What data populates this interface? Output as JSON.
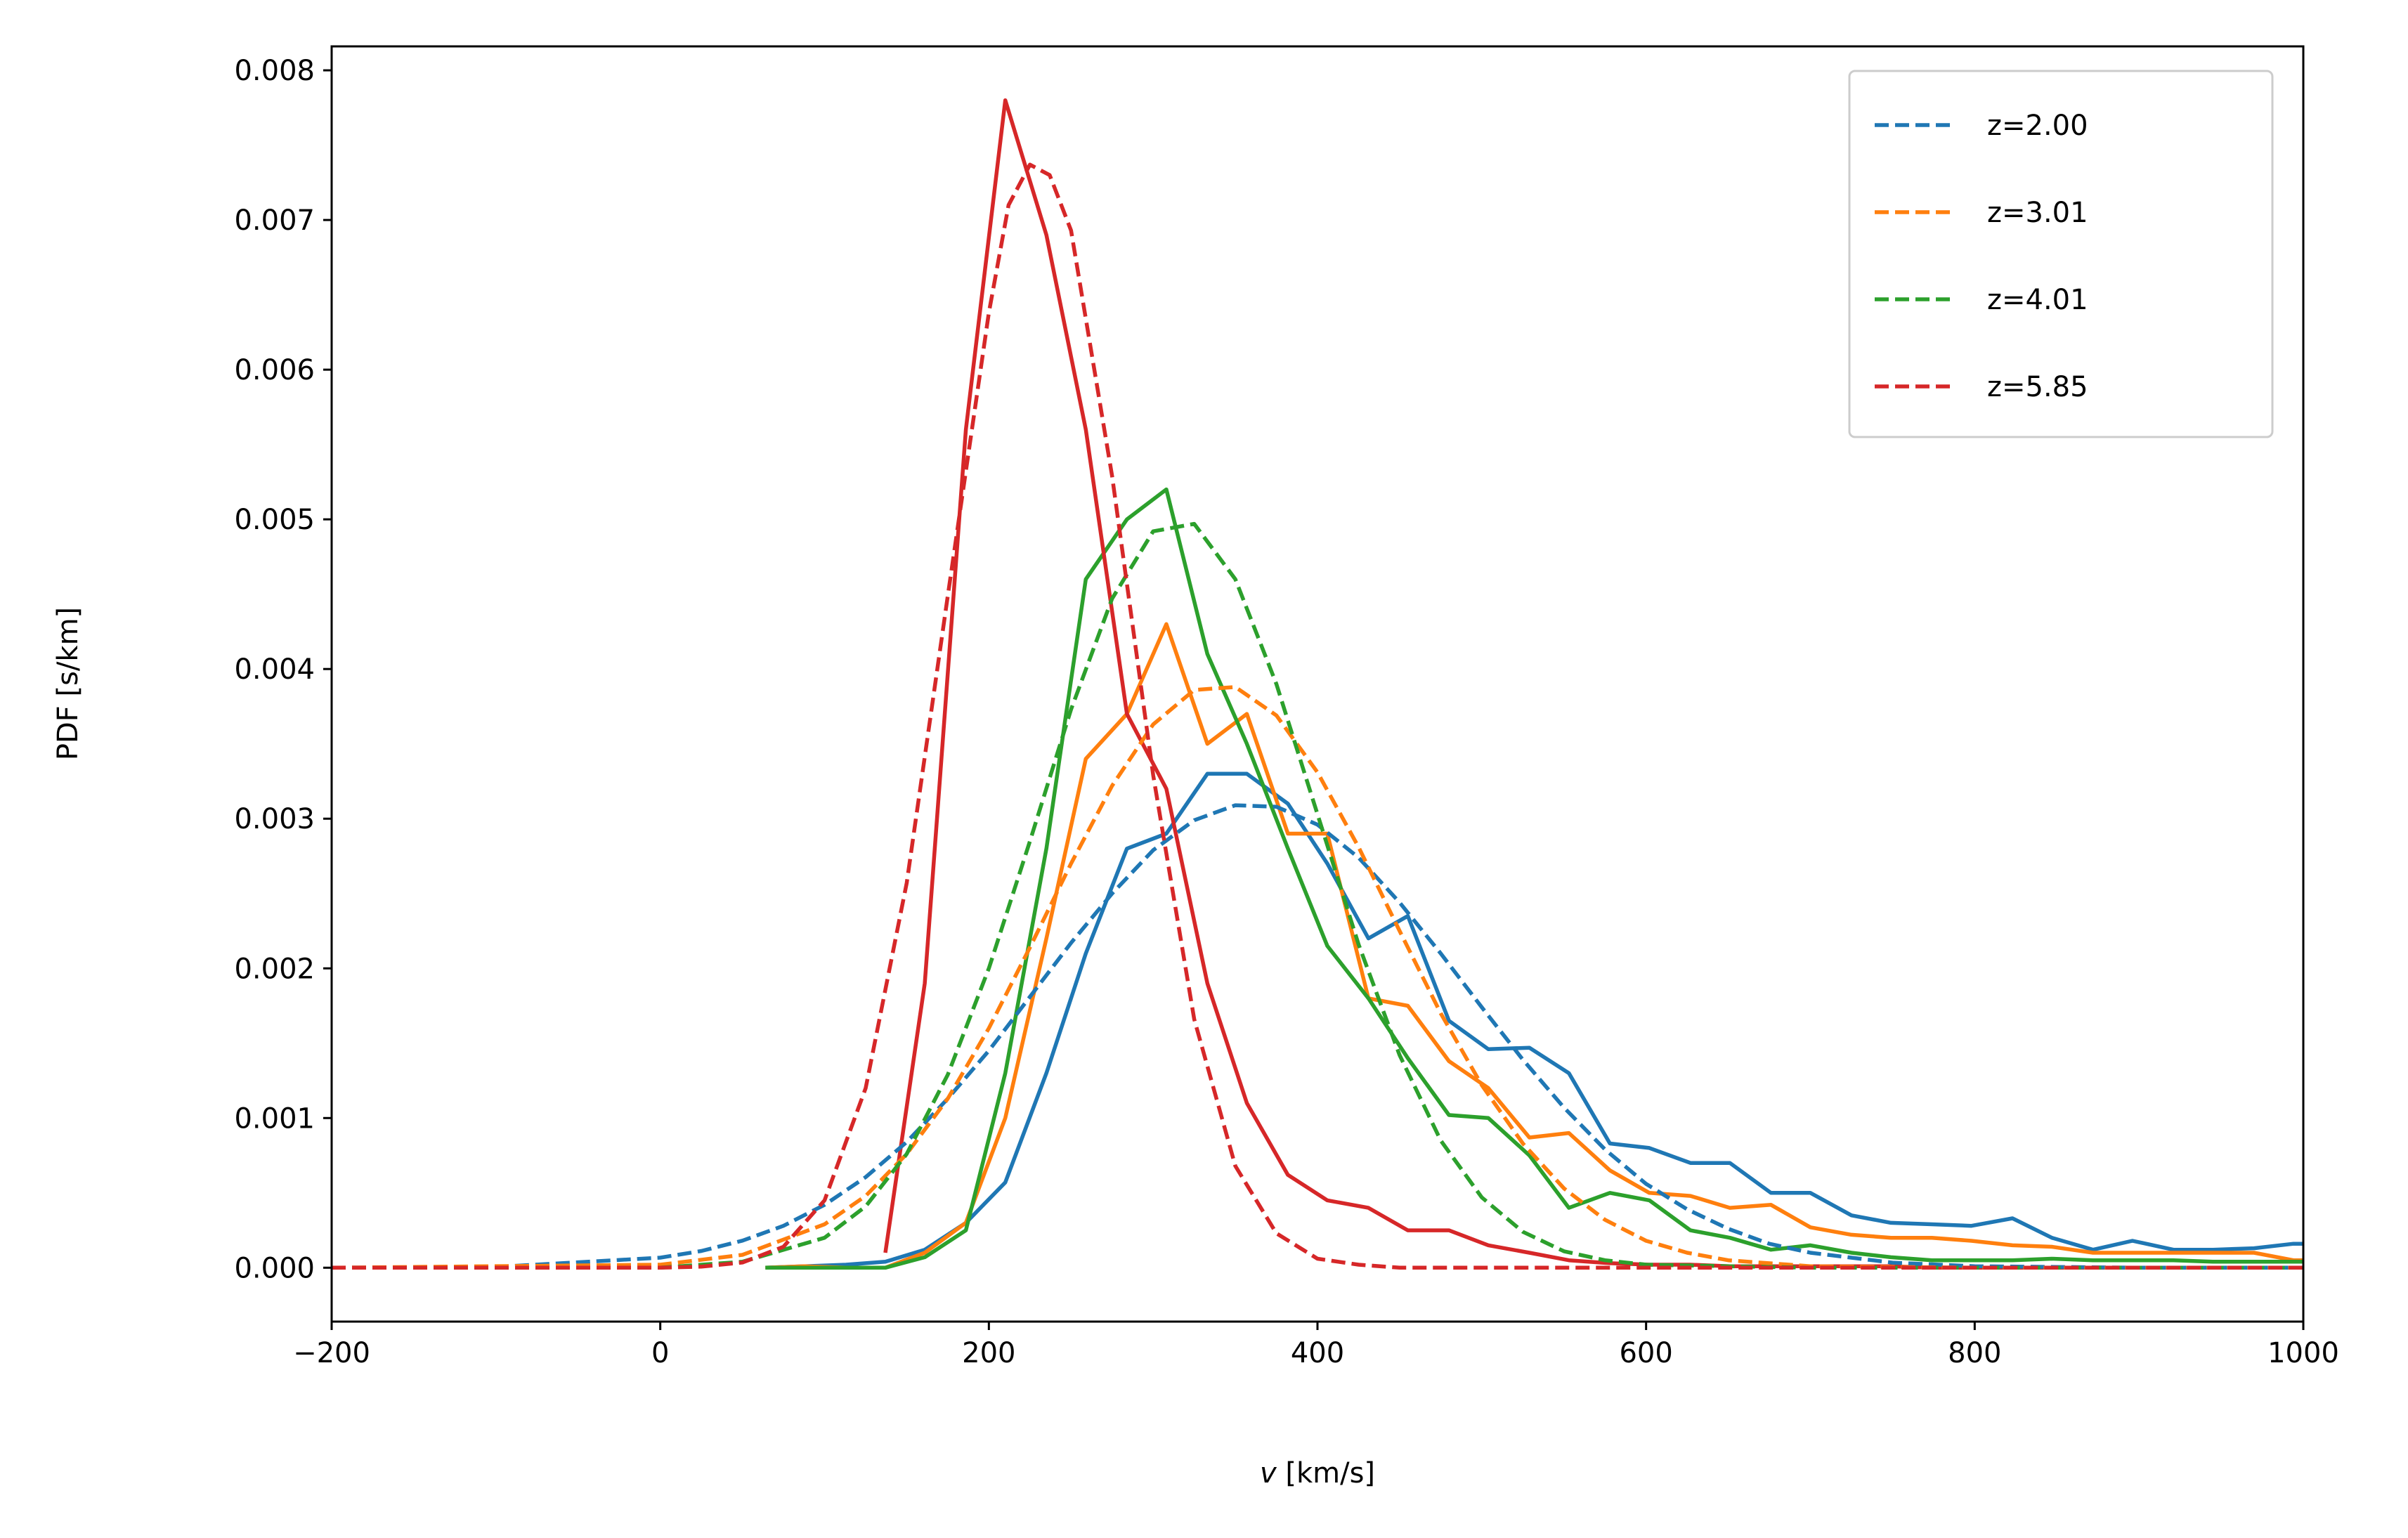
{
  "chart_data": {
    "type": "line",
    "title": "",
    "xlabel_var": "v",
    "xlabel_unit": " [km/s]",
    "ylabel": "PDF [s/km]",
    "xlim": [
      -200,
      1000
    ],
    "ylim": [
      -0.00036,
      0.00816
    ],
    "xticks": [
      -200,
      0,
      200,
      400,
      600,
      800,
      1000
    ],
    "xtick_labels": [
      "−200",
      "0",
      "200",
      "400",
      "600",
      "800",
      "1000"
    ],
    "yticks": [
      0,
      0.001,
      0.002,
      0.003,
      0.004,
      0.005,
      0.006,
      0.007,
      0.008
    ],
    "ytick_labels": [
      "0.000",
      "0.001",
      "0.002",
      "0.003",
      "0.004",
      "0.005",
      "0.006",
      "0.007",
      "0.008"
    ],
    "grid": false,
    "legend_position": "top-right",
    "legend": [
      {
        "label": "z=2.00",
        "color": "#1f77b4"
      },
      {
        "label": "z=3.01",
        "color": "#ff7f0e"
      },
      {
        "label": "z=4.01",
        "color": "#2ca02c"
      },
      {
        "label": "z=5.85",
        "color": "#d62728"
      }
    ],
    "series": [
      {
        "name": "z=2.00",
        "style": "solid",
        "color": "#1f77b4",
        "x": [
          64,
          88,
          113,
          137,
          161,
          186,
          210,
          235,
          259,
          284,
          308,
          333,
          357,
          382,
          406,
          431,
          455,
          480,
          504,
          529,
          553,
          578,
          602,
          627,
          651,
          676,
          700,
          725,
          749,
          774,
          798,
          823,
          847,
          872,
          896,
          921,
          945,
          970,
          994,
          1000
        ],
        "y": [
          0,
          1e-05,
          2e-05,
          4e-05,
          0.00012,
          0.0003,
          0.00057,
          0.0013,
          0.0021,
          0.0028,
          0.0029,
          0.0033,
          0.0033,
          0.0031,
          0.0027,
          0.0022,
          0.00235,
          0.00165,
          0.00146,
          0.00147,
          0.0013,
          0.00083,
          0.0008,
          0.0007,
          0.0007,
          0.0005,
          0.0005,
          0.00035,
          0.0003,
          0.00029,
          0.00028,
          0.00033,
          0.0002,
          0.00012,
          0.00018,
          0.00012,
          0.00012,
          0.00013,
          0.00016,
          0.00016
        ]
      },
      {
        "name": "z=3.01",
        "style": "solid",
        "color": "#ff7f0e",
        "x": [
          64,
          88,
          113,
          137,
          161,
          186,
          210,
          235,
          259,
          284,
          308,
          333,
          357,
          382,
          406,
          431,
          455,
          480,
          504,
          529,
          553,
          578,
          602,
          627,
          651,
          676,
          700,
          725,
          749,
          774,
          798,
          823,
          847,
          872,
          896,
          921,
          945,
          970,
          994,
          1000
        ],
        "y": [
          0,
          1e-05,
          0,
          0,
          0.0001,
          0.0003,
          0.001,
          0.0022,
          0.0034,
          0.0037,
          0.0043,
          0.0035,
          0.0037,
          0.0029,
          0.0029,
          0.0018,
          0.00175,
          0.00138,
          0.0012,
          0.00087,
          0.0009,
          0.00065,
          0.0005,
          0.00048,
          0.0004,
          0.00042,
          0.00027,
          0.00022,
          0.0002,
          0.0002,
          0.00018,
          0.00015,
          0.00014,
          0.0001,
          0.0001,
          0.0001,
          0.0001,
          0.0001,
          5e-05,
          5e-05
        ]
      },
      {
        "name": "z=4.01",
        "style": "solid",
        "color": "#2ca02c",
        "x": [
          64,
          88,
          113,
          137,
          161,
          186,
          210,
          235,
          259,
          284,
          308,
          333,
          357,
          382,
          406,
          431,
          455,
          480,
          504,
          529,
          553,
          578,
          602,
          627,
          651,
          676,
          700,
          725,
          749,
          774,
          798,
          823,
          847,
          872,
          896,
          921,
          945,
          970,
          994,
          1000
        ],
        "y": [
          0,
          0,
          0,
          0,
          7e-05,
          0.00025,
          0.0013,
          0.0028,
          0.0046,
          0.005,
          0.0052,
          0.0041,
          0.0035,
          0.0028,
          0.00215,
          0.0018,
          0.0014,
          0.00102,
          0.001,
          0.00075,
          0.0004,
          0.0005,
          0.00045,
          0.00025,
          0.0002,
          0.00012,
          0.00015,
          0.0001,
          7e-05,
          5e-05,
          5e-05,
          5e-05,
          6e-05,
          5e-05,
          5e-05,
          5e-05,
          4e-05,
          4e-05,
          4e-05,
          4e-05
        ]
      },
      {
        "name": "z=5.85",
        "style": "solid",
        "color": "#d62728",
        "x": [
          137,
          161,
          186,
          210,
          235,
          259,
          284,
          308,
          333,
          357,
          382,
          406,
          431,
          455,
          480,
          504,
          529,
          553,
          578,
          602,
          627,
          651,
          676,
          700,
          725,
          749,
          774,
          798,
          823,
          847,
          872,
          896,
          921,
          945,
          970,
          994,
          1000
        ],
        "y": [
          0.0001,
          0.0019,
          0.0056,
          0.0078,
          0.0069,
          0.0056,
          0.0037,
          0.0032,
          0.0019,
          0.0011,
          0.00062,
          0.00045,
          0.0004,
          0.00025,
          0.00025,
          0.00015,
          0.0001,
          5e-05,
          3e-05,
          2e-05,
          2e-05,
          1e-05,
          1e-05,
          1e-05,
          1e-05,
          1e-05,
          0,
          0,
          0,
          0,
          0,
          0,
          0,
          0,
          0,
          0,
          0
        ]
      },
      {
        "name": "z=2.00",
        "style": "dashed",
        "color": "#1f77b4",
        "x": [
          -200,
          -100,
          0,
          25,
          50,
          75,
          100,
          125,
          150,
          175,
          200,
          225,
          250,
          275,
          300,
          325,
          350,
          375,
          400,
          425,
          450,
          475,
          500,
          525,
          550,
          575,
          600,
          625,
          650,
          675,
          700,
          750,
          800,
          900,
          1000
        ],
        "y": [
          0,
          5e-06,
          6.7e-05,
          0.000112,
          0.000181,
          0.00028,
          0.00042,
          0.000605,
          0.00084,
          0.00113,
          0.00145,
          0.00181,
          0.00217,
          0.0025,
          0.00279,
          0.00299,
          0.00309,
          0.00308,
          0.00296,
          0.00274,
          0.00244,
          0.0021,
          0.00174,
          0.00139,
          0.00107,
          0.00079,
          0.00056,
          0.00039,
          0.00026,
          0.00016,
          0.0001,
          3.4e-05,
          1e-05,
          0,
          0
        ]
      },
      {
        "name": "z=3.01",
        "style": "dashed",
        "color": "#ff7f0e",
        "x": [
          -200,
          0,
          50,
          100,
          125,
          150,
          175,
          200,
          225,
          250,
          275,
          300,
          325,
          350,
          375,
          400,
          425,
          450,
          475,
          500,
          525,
          550,
          575,
          600,
          625,
          650,
          700,
          800,
          1000
        ],
        "y": [
          0,
          2e-05,
          8.6e-05,
          0.00029,
          0.00048,
          0.00076,
          0.00113,
          0.0016,
          0.00214,
          0.0027,
          0.00322,
          0.00363,
          0.00386,
          0.00388,
          0.00369,
          0.00331,
          0.00281,
          0.00225,
          0.0017,
          0.00122,
          0.00083,
          0.00053,
          0.00032,
          0.00018,
          0.0001,
          5e-05,
          1e-05,
          0,
          0
        ]
      },
      {
        "name": "z=4.01",
        "style": "dashed",
        "color": "#2ca02c",
        "x": [
          -200,
          0,
          50,
          100,
          125,
          150,
          175,
          200,
          225,
          250,
          275,
          300,
          325,
          350,
          375,
          400,
          425,
          450,
          475,
          500,
          525,
          550,
          575,
          600,
          700,
          1000
        ],
        "y": [
          0,
          0,
          4e-05,
          0.0002,
          0.00041,
          0.00076,
          0.00129,
          0.002,
          0.00285,
          0.00373,
          0.00447,
          0.00492,
          0.00497,
          0.0046,
          0.0039,
          0.00303,
          0.00216,
          0.00142,
          0.00085,
          0.00047,
          0.00024,
          0.00011,
          5e-05,
          2e-05,
          0,
          0
        ]
      },
      {
        "name": "z=5.85",
        "style": "dashed",
        "color": "#d62728",
        "x": [
          -200,
          0,
          25,
          50,
          75,
          100,
          125,
          150,
          175,
          200,
          212,
          225,
          237,
          250,
          275,
          300,
          325,
          350,
          375,
          400,
          425,
          450,
          600,
          800,
          1000
        ],
        "y": [
          0,
          0,
          7e-06,
          3.5e-05,
          0.00014,
          0.00045,
          0.0012,
          0.00257,
          0.00449,
          0.00638,
          0.0071,
          0.00737,
          0.0073,
          0.00693,
          0.00529,
          0.00329,
          0.00166,
          0.00068,
          0.00023,
          6e-05,
          2e-05,
          0,
          0,
          0,
          0
        ]
      }
    ]
  }
}
